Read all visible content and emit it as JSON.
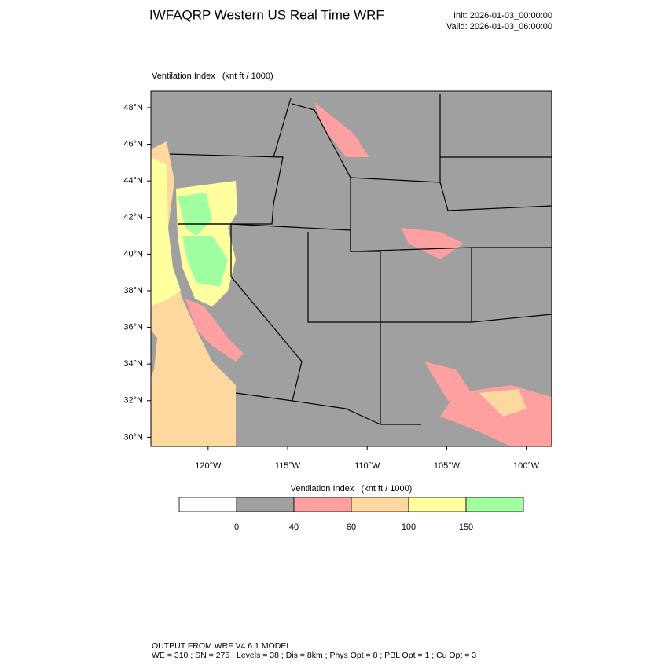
{
  "header": {
    "title": "IWFAQRP Western US Real Time WRF",
    "init": "Init: 2026-01-03_00:00:00",
    "valid": "Valid: 2026-01-03_06:00:00"
  },
  "map": {
    "field_label": "Ventilation Index   (knt ft / 1000)",
    "xlim": [
      -123.6,
      -98.4
    ],
    "ylim": [
      29.5,
      48.9
    ],
    "xticks": [
      {
        "value": -120,
        "label": "120°W"
      },
      {
        "value": -115,
        "label": "115°W"
      },
      {
        "value": -110,
        "label": "110°W"
      },
      {
        "value": -105,
        "label": "105°W"
      },
      {
        "value": -100,
        "label": "100°W"
      }
    ],
    "yticks": [
      {
        "value": 48,
        "label": "48°N"
      },
      {
        "value": 46,
        "label": "46°N"
      },
      {
        "value": 44,
        "label": "44°N"
      },
      {
        "value": 42,
        "label": "42°N"
      },
      {
        "value": 40,
        "label": "40°N"
      },
      {
        "value": 38,
        "label": "38°N"
      },
      {
        "value": 36,
        "label": "36°N"
      },
      {
        "value": 34,
        "label": "34°N"
      },
      {
        "value": 32,
        "label": "32°N"
      },
      {
        "value": 30,
        "label": "30°N"
      }
    ]
  },
  "colorbar": {
    "label": "Ventilation Index   (knt ft / 1000)",
    "ticks": [
      0,
      40,
      60,
      100,
      150
    ],
    "colors": [
      "#ffffff",
      "#a0a0a0",
      "#ffa0a0",
      "#ffd8a0",
      "#ffffa0",
      "#a0ffa0"
    ]
  },
  "footer": {
    "model": "OUTPUT FROM WRF V4.6.1 MODEL",
    "settings": "WE = 310 ; SN = 275 ; Levels = 38 ; Dis = 8km ; Phys Opt = 8 ; PBL Opt = 1 ; Cu Opt = 3"
  }
}
